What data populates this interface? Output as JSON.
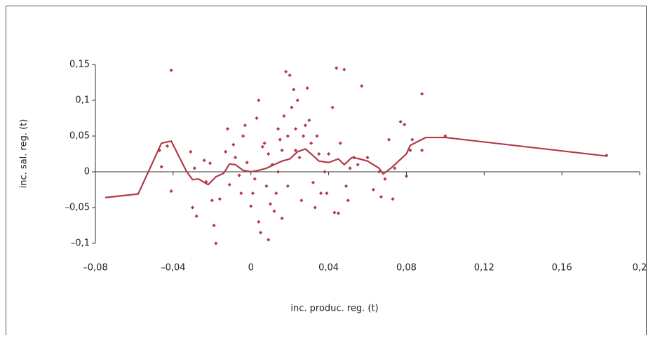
{
  "chart_data": {
    "type": "scatter",
    "x_label": "inc. produc. reg. (t)",
    "y_label": "inc. sal. reg. (t)",
    "xlim": [
      -0.08,
      0.2
    ],
    "ylim": [
      -0.1,
      0.15
    ],
    "xticks": [
      {
        "value": -0.08,
        "label": "–0,08"
      },
      {
        "value": -0.04,
        "label": "–0,04"
      },
      0,
      {
        "value": 0.04,
        "label": "0,04"
      },
      {
        "value": 0.08,
        "label": "0,08"
      },
      {
        "value": 0.12,
        "label": "0,12"
      },
      {
        "value": 0.16,
        "label": "0,16"
      },
      {
        "value": 0.2,
        "label": "0,2"
      }
    ],
    "yticks": [
      {
        "value": -0.1,
        "label": "–0,1"
      },
      {
        "value": -0.05,
        "label": "–0,05"
      },
      0,
      {
        "value": 0.05,
        "label": "0,05"
      },
      {
        "value": 0.1,
        "label": "0,1"
      },
      {
        "value": 0.15,
        "label": "0,15"
      }
    ],
    "grid": false,
    "series": [
      {
        "type": "scatter",
        "color": "#b23a4a",
        "x": [
          -0.041,
          -0.047,
          -0.046,
          -0.043,
          -0.041,
          -0.031,
          -0.029,
          -0.03,
          -0.028,
          -0.024,
          -0.023,
          -0.021,
          -0.02,
          -0.018,
          -0.019,
          -0.016,
          -0.013,
          -0.012,
          -0.011,
          -0.009,
          -0.008,
          -0.006,
          -0.004,
          -0.003,
          -0.002,
          0.0,
          0.001,
          0.002,
          0.003,
          0.004,
          0.005,
          0.006,
          0.007,
          0.008,
          0.009,
          0.01,
          0.011,
          0.012,
          0.013,
          0.014,
          0.015,
          0.016,
          0.017,
          0.018,
          0.019,
          0.02,
          0.021,
          0.022,
          0.023,
          0.023,
          0.024,
          0.025,
          0.026,
          0.027,
          0.028,
          0.029,
          0.03,
          0.031,
          0.032,
          0.033,
          0.034,
          0.035,
          0.036,
          0.038,
          0.039,
          0.04,
          0.042,
          0.043,
          0.044,
          0.045,
          0.046,
          0.048,
          0.049,
          0.05,
          0.051,
          0.053,
          0.055,
          0.057,
          0.06,
          0.063,
          0.066,
          0.067,
          0.069,
          0.071,
          0.073,
          0.074,
          0.077,
          0.079,
          0.08,
          0.082,
          0.083,
          0.088,
          0.088,
          0.1,
          0.183,
          0.009,
          0.004,
          -0.005,
          0.014,
          0.016,
          0.019
        ],
        "values": [
          0.142,
          0.03,
          0.007,
          0.036,
          -0.027,
          0.028,
          0.005,
          -0.05,
          -0.062,
          0.016,
          -0.014,
          0.012,
          -0.04,
          -0.1,
          -0.075,
          -0.038,
          0.028,
          0.06,
          -0.018,
          0.038,
          0.02,
          -0.005,
          0.05,
          0.065,
          0.013,
          -0.048,
          -0.03,
          -0.01,
          0.075,
          0.1,
          -0.085,
          0.035,
          0.04,
          -0.02,
          0.025,
          -0.045,
          0.01,
          -0.055,
          -0.03,
          0.06,
          0.045,
          -0.065,
          0.078,
          0.14,
          -0.02,
          0.135,
          0.09,
          0.115,
          0.06,
          0.03,
          0.1,
          0.02,
          -0.04,
          0.05,
          0.065,
          0.117,
          0.072,
          0.04,
          -0.015,
          -0.05,
          0.05,
          0.025,
          -0.03,
          0.0,
          -0.03,
          0.025,
          0.09,
          -0.057,
          0.145,
          -0.058,
          0.04,
          0.143,
          -0.02,
          -0.04,
          0.005,
          0.02,
          0.01,
          0.12,
          0.02,
          -0.025,
          0.0,
          -0.035,
          -0.01,
          0.045,
          -0.038,
          0.005,
          0.07,
          0.066,
          -0.006,
          0.03,
          0.045,
          0.109,
          0.03,
          0.05,
          0.023,
          -0.095,
          -0.07,
          -0.03,
          0.0,
          0.03,
          0.05
        ]
      },
      {
        "type": "line",
        "color": "#b23a4a",
        "x": [
          -0.075,
          -0.058,
          -0.046,
          -0.041,
          -0.033,
          -0.03,
          -0.027,
          -0.022,
          -0.018,
          -0.014,
          -0.011,
          -0.008,
          -0.004,
          0.0,
          0.004,
          0.008,
          0.012,
          0.016,
          0.02,
          0.024,
          0.028,
          0.031,
          0.035,
          0.04,
          0.045,
          0.048,
          0.052,
          0.056,
          0.06,
          0.066,
          0.068,
          0.072,
          0.078,
          0.08,
          0.082,
          0.09,
          0.1,
          0.183
        ],
        "values": [
          -0.036,
          -0.031,
          0.04,
          0.043,
          0.0,
          -0.011,
          -0.01,
          -0.018,
          -0.007,
          -0.002,
          0.011,
          0.01,
          0.002,
          0.0,
          0.002,
          0.005,
          0.01,
          0.015,
          0.018,
          0.028,
          0.032,
          0.025,
          0.015,
          0.013,
          0.018,
          0.01,
          0.02,
          0.018,
          0.015,
          0.005,
          -0.003,
          0.005,
          0.02,
          0.025,
          0.037,
          0.048,
          0.048,
          0.022
        ]
      }
    ]
  }
}
